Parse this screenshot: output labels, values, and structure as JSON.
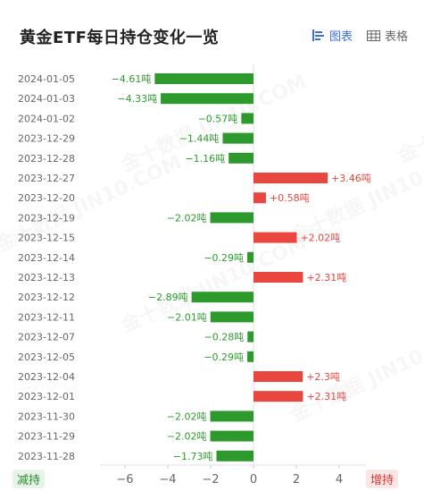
{
  "title": "黄金ETF每日持仓变化一览",
  "tabs": {
    "chart": "图表",
    "table": "表格"
  },
  "legend": {
    "decrease": "减持",
    "increase": "增持"
  },
  "watermark": "金十数据 JIN10.COM",
  "colors": {
    "positive": "#e8463f",
    "negative": "#2e9a2e",
    "accent": "#3d6fd9"
  },
  "chart_data": {
    "type": "bar",
    "orientation": "horizontal",
    "categories": [
      "2024-01-05",
      "2024-01-03",
      "2024-01-02",
      "2023-12-29",
      "2023-12-28",
      "2023-12-27",
      "2023-12-20",
      "2023-12-19",
      "2023-12-15",
      "2023-12-14",
      "2023-12-13",
      "2023-12-12",
      "2023-12-11",
      "2023-12-07",
      "2023-12-05",
      "2023-12-04",
      "2023-12-01",
      "2023-11-30",
      "2023-11-29",
      "2023-11-28"
    ],
    "values": [
      -4.61,
      -4.33,
      -0.57,
      -1.44,
      -1.16,
      3.46,
      0.58,
      -2.02,
      2.02,
      -0.29,
      2.31,
      -2.89,
      -2.01,
      -0.28,
      -0.29,
      2.3,
      2.31,
      -2.02,
      -2.02,
      -1.73
    ],
    "labels": [
      "−4.61吨",
      "−4.33吨",
      "−0.57吨",
      "−1.44吨",
      "−1.16吨",
      "+3.46吨",
      "+0.58吨",
      "−2.02吨",
      "+2.02吨",
      "−0.29吨",
      "+2.31吨",
      "−2.89吨",
      "−2.01吨",
      "−0.28吨",
      "−0.29吨",
      "+2.3吨",
      "+2.31吨",
      "−2.02吨",
      "−2.02吨",
      "−1.73吨"
    ],
    "xlim": [
      -8,
      6
    ],
    "xticks": [
      -6,
      -4,
      -2,
      0,
      2,
      4
    ],
    "xtick_labels": [
      "−6",
      "−4",
      "−2",
      "0",
      "2",
      "4"
    ],
    "unit": "吨"
  }
}
